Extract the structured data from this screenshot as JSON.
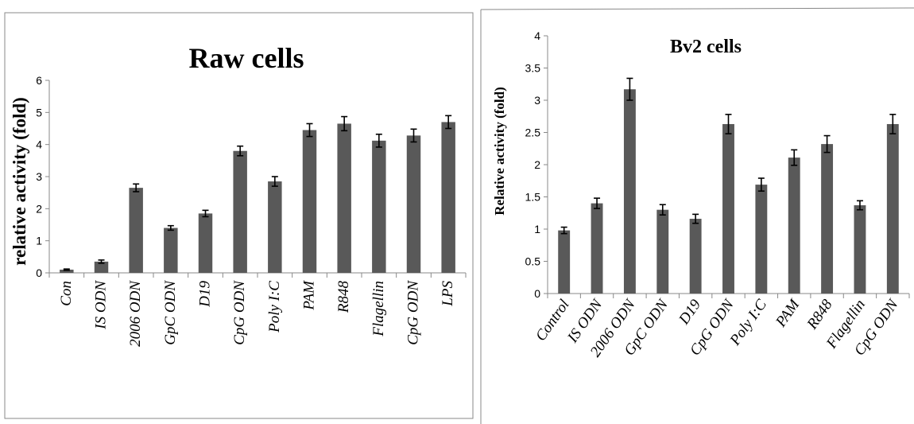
{
  "chart_data": [
    {
      "type": "bar",
      "title": "Raw cells",
      "xlabel": "",
      "ylabel": "relative activity (fold)",
      "ylim": [
        0,
        6
      ],
      "yticks": [
        "0",
        "1",
        "2",
        "3",
        "4",
        "5",
        "6"
      ],
      "categories": [
        "Con",
        "IS ODN",
        "2006 ODN",
        "GpC ODN",
        "D19",
        "CpG ODN",
        "Poly I:C",
        "PAM",
        "R848",
        "Flagellin",
        "CpG ODN",
        "LPS"
      ],
      "values": [
        0.1,
        0.35,
        2.65,
        1.4,
        1.85,
        3.8,
        2.85,
        4.45,
        4.65,
        4.12,
        4.28,
        4.7
      ],
      "errors": [
        0.02,
        0.05,
        0.12,
        0.07,
        0.1,
        0.15,
        0.15,
        0.2,
        0.22,
        0.2,
        0.2,
        0.2
      ],
      "bar_color": "#595959",
      "grid": false
    },
    {
      "type": "bar",
      "title": "Bv2 cells",
      "xlabel": "",
      "ylabel": "Relative activity (fold)",
      "ylim": [
        0,
        4
      ],
      "yticks": [
        "0",
        "0.5",
        "1",
        "1.5",
        "2",
        "2.5",
        "3",
        "3.5",
        "4"
      ],
      "categories": [
        "Control",
        "IS ODN",
        "2006 ODN",
        "GpC ODN",
        "D19",
        "CpG ODN",
        "Poly I:C",
        "PAM",
        "R848",
        "Flagellin",
        "CpG ODN"
      ],
      "values": [
        0.98,
        1.4,
        3.17,
        1.3,
        1.16,
        2.63,
        1.69,
        2.11,
        2.32,
        1.37,
        2.63
      ],
      "errors": [
        0.05,
        0.08,
        0.17,
        0.08,
        0.07,
        0.15,
        0.1,
        0.12,
        0.13,
        0.07,
        0.15
      ],
      "bar_color": "#595959",
      "grid": false
    }
  ]
}
